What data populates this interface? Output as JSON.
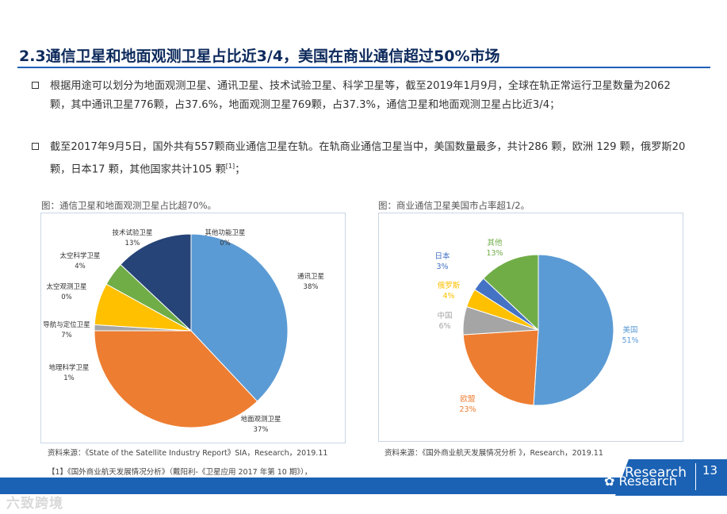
{
  "title": "2.3通信卫星和地面观测卫星占比近3/4，美国在商业通信超过50%市场",
  "bullets": [
    {
      "text": "根据用途可以划分为地面观测卫星、通讯卫星、技术试验卫星、科学卫星等，截至2019年1月9月，全球在轨正常运行卫星数量为2062颗，其中通讯卫星776颗，占37.6%，地面观测卫星769颗，占37.3%，通信卫星和地面观测卫星占比近3/4；",
      "ref": ""
    },
    {
      "text": "截至2017年9月5日，国外共有557颗商业通信卫星在轨。在轨商业通信卫星当中，美国数量最多，共计286 颗，欧洲 129 颗，俄罗斯20 颗，日本17 颗，其他国家共计105 颗",
      "ref": "[1]",
      "end": "；"
    }
  ],
  "figure_left": {
    "caption": "图：通信卫星和地面观测卫星占比超70%。",
    "source": "资料来源：《State of the Satellite Industry Report》SIA，Research，2019.11"
  },
  "figure_right": {
    "caption": "图：商业通信卫星美国市占率超1/2。",
    "source": "资料来源：《国外商业航天发展情况分析 》，Research，2019.11"
  },
  "reference": "【1】《国外商业航天发展情况分析》（戴阳利-《卫星应用 2017 年第 10 期》），",
  "chart_data": [
    {
      "type": "pie",
      "title": "图：通信卫星和地面观测卫星占比超70%。",
      "categories": [
        "通讯卫星",
        "地面观测卫星",
        "地理科学卫星",
        "导航与定位卫星",
        "太空观测卫星",
        "太空科学卫星",
        "技术试验卫星",
        "其他功能卫星"
      ],
      "values": [
        38,
        37,
        1,
        7,
        0,
        4,
        13,
        0
      ],
      "labels": [
        "38%",
        "37%",
        "1%",
        "7%",
        "0%",
        "4%",
        "13%",
        "0%"
      ],
      "colors": [
        "#5b9bd5",
        "#ed7d31",
        "#a5a5a5",
        "#ffc000",
        "#4472c4",
        "#70ad47",
        "#264478",
        "#9e480e"
      ]
    },
    {
      "type": "pie",
      "title": "图：商业通信卫星美国市占率超1/2。",
      "categories": [
        "美国",
        "欧盟",
        "中国",
        "俄罗斯",
        "日本",
        "其他"
      ],
      "values": [
        51,
        23,
        6,
        4,
        3,
        13
      ],
      "labels": [
        "51%",
        "23%",
        "6%",
        "4%",
        "3%",
        "13%"
      ],
      "colors": [
        "#5b9bd5",
        "#ed7d31",
        "#a5a5a5",
        "#ffc000",
        "#4472c4",
        "#70ad47"
      ]
    }
  ],
  "brand": {
    "name": "Research",
    "page": "13",
    "wechat": "Research"
  },
  "watermark": "六致跨境"
}
